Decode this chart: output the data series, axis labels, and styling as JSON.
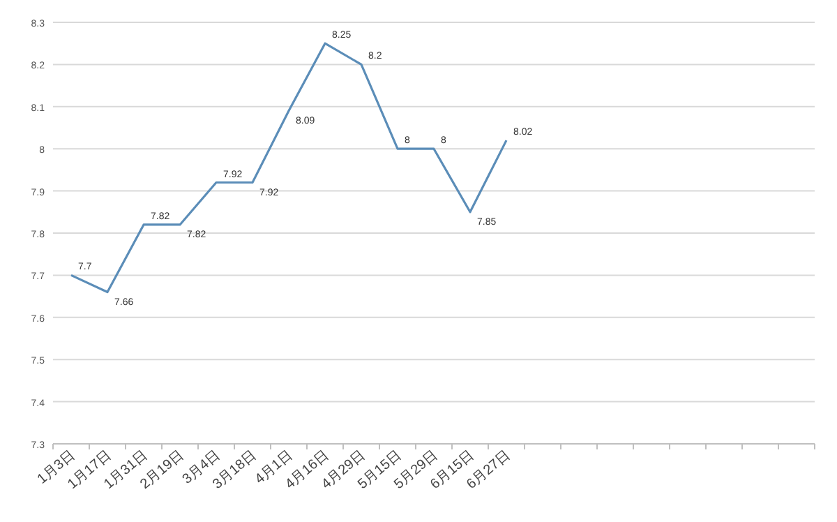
{
  "chart_data": {
    "type": "line",
    "categories": [
      "1月3日",
      "1月17日",
      "1月31日",
      "2月19日",
      "3月4日",
      "3月18日",
      "4月1日",
      "4月16日",
      "4月29日",
      "5月15日",
      "5月29日",
      "6月15日",
      "6月27日",
      null,
      null,
      null,
      null,
      null,
      null,
      null,
      null
    ],
    "series": [
      {
        "color": "#5b8db8",
        "values": [
          7.7,
          7.66,
          7.82,
          7.82,
          7.92,
          7.92,
          8.09,
          8.25,
          8.2,
          8,
          8,
          7.85,
          8.02,
          null,
          null,
          null,
          null,
          null,
          null,
          null,
          null
        ]
      }
    ],
    "ylim": [
      7.3,
      8.3
    ],
    "yticks": [
      7.3,
      7.4,
      7.5,
      7.6,
      7.7,
      7.8,
      7.9,
      8,
      8.1,
      8.2,
      8.3
    ],
    "grid": "y",
    "data_labels": true,
    "marker": "none",
    "line_style": "solid"
  }
}
